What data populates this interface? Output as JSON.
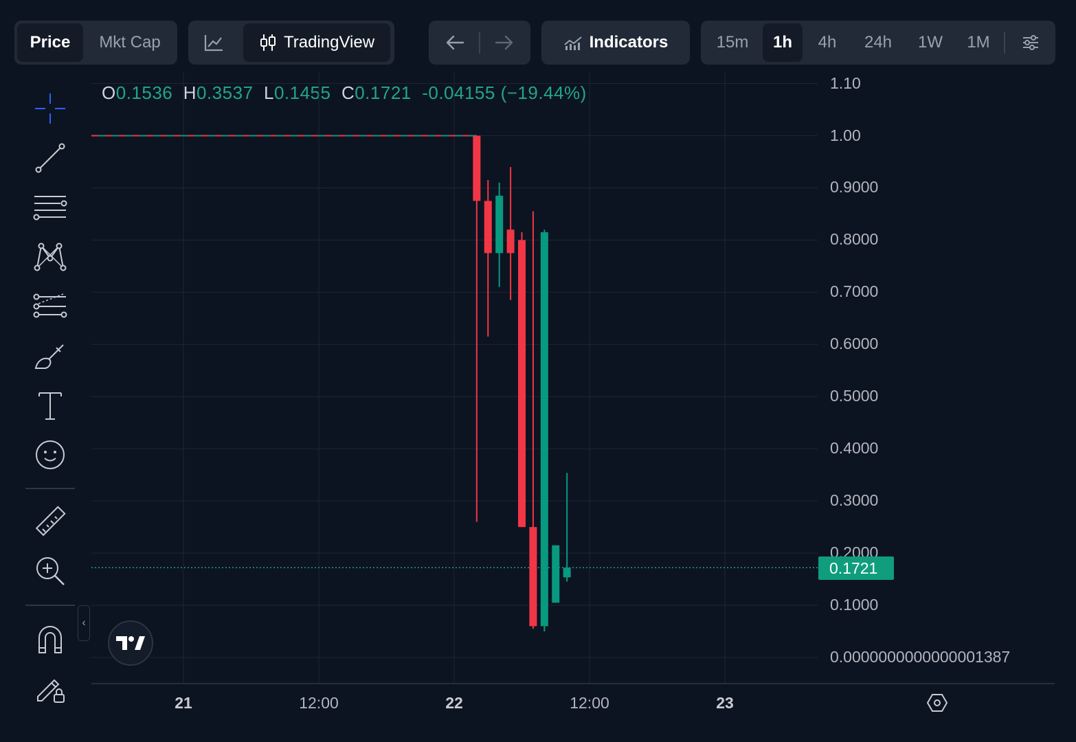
{
  "toolbar": {
    "price_tab": "Price",
    "mktcap_tab": "Mkt Cap",
    "tradingview_label": "TradingView",
    "indicators_label": "Indicators",
    "timeframes": [
      "15m",
      "1h",
      "4h",
      "24h",
      "1W",
      "1M"
    ],
    "active_timeframe": "1h"
  },
  "ohlc": {
    "o_label": "O",
    "o_value": "0.1536",
    "h_label": "H",
    "h_value": "0.3537",
    "l_label": "L",
    "l_value": "0.1455",
    "c_label": "C",
    "c_value": "0.1721",
    "change": "-0.04155 (−19.44%)"
  },
  "current_price_tag": "0.1721",
  "colors": {
    "background": "#0d1421",
    "up": "#089981",
    "down": "#f23645",
    "grid": "#1e2633",
    "price_tag": "#0f9d7d"
  },
  "chart_data": {
    "type": "candlestick",
    "y_tick_labels": [
      "1.10",
      "1.00",
      "0.9000",
      "0.8000",
      "0.7000",
      "0.6000",
      "0.5000",
      "0.4000",
      "0.3000",
      "0.2000",
      "0.1000",
      "0.0000000000000001387"
    ],
    "y_ticks": [
      1.1,
      1.0,
      0.9,
      0.8,
      0.7,
      0.6,
      0.5,
      0.4,
      0.3,
      0.2,
      0.1,
      0.0
    ],
    "ylim": [
      -0.05,
      1.12
    ],
    "x_tick_labels": [
      "21",
      "12:00",
      "22",
      "12:00",
      "23"
    ],
    "x_ticks": [
      "2024-x-21 00:00",
      "2024-x-21 12:00",
      "2024-x-22 00:00",
      "2024-x-22 12:00",
      "2024-x-23 00:00"
    ],
    "x_tick_hours": [
      0,
      12,
      24,
      36,
      48
    ],
    "xlim_hours": [
      -8.2,
      56.3
    ],
    "reference_line": 1.0,
    "current_price": 0.1721,
    "candles": [
      {
        "hour": 26.0,
        "open": 1.0,
        "high": 1.0,
        "low": 0.26,
        "close": 0.875
      },
      {
        "hour": 27.0,
        "open": 0.875,
        "high": 0.915,
        "low": 0.615,
        "close": 0.775
      },
      {
        "hour": 28.0,
        "open": 0.775,
        "high": 0.91,
        "low": 0.71,
        "close": 0.885
      },
      {
        "hour": 29.0,
        "open": 0.82,
        "high": 0.94,
        "low": 0.685,
        "close": 0.775
      },
      {
        "hour": 30.0,
        "open": 0.8,
        "high": 0.815,
        "low": 0.25,
        "close": 0.25
      },
      {
        "hour": 31.0,
        "open": 0.25,
        "high": 0.855,
        "low": 0.055,
        "close": 0.06
      },
      {
        "hour": 32.0,
        "open": 0.06,
        "high": 0.82,
        "low": 0.05,
        "close": 0.815
      },
      {
        "hour": 33.0,
        "open": 0.105,
        "high": 0.215,
        "low": 0.105,
        "close": 0.215
      },
      {
        "hour": 34.0,
        "open": 0.1536,
        "high": 0.3537,
        "low": 0.1455,
        "close": 0.1721
      }
    ]
  }
}
